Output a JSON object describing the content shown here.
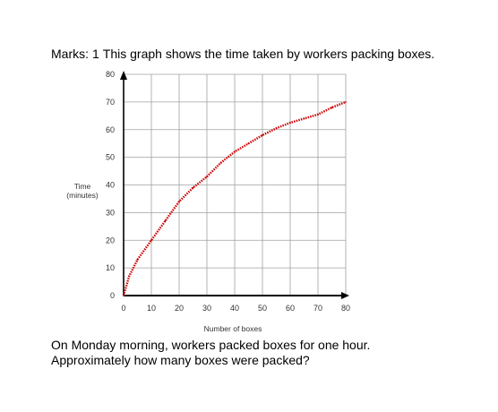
{
  "question": {
    "marks_label": "Marks:",
    "marks_value": "1",
    "text": "This graph shows the time taken by workers packing boxes.",
    "footer_line1": "On Monday morning, workers packed boxes for one hour.",
    "footer_line2": "Approximately how many boxes were packed?"
  },
  "chart_data": {
    "type": "line",
    "xlabel": "Number of boxes",
    "ylabel": "Time",
    "ylabel_unit": "(minutes)",
    "xlim": [
      0,
      80
    ],
    "ylim": [
      0,
      80
    ],
    "xticks": [
      0,
      10,
      20,
      30,
      40,
      50,
      60,
      70,
      80
    ],
    "yticks": [
      0,
      10,
      20,
      30,
      40,
      50,
      60,
      70,
      80
    ],
    "grid": true,
    "series": [
      {
        "color": "#cc0000",
        "style": "dotted",
        "x": [
          0,
          2,
          5,
          10,
          15,
          20,
          25,
          30,
          35,
          40,
          45,
          50,
          55,
          60,
          65,
          70,
          75,
          80
        ],
        "y": [
          0,
          7,
          13,
          20,
          27,
          34,
          39,
          43,
          48,
          52,
          55,
          58,
          60.5,
          62.5,
          64,
          65.5,
          68,
          70
        ]
      }
    ],
    "colors": {
      "grid": "#a0a0a0",
      "axis": "#000000"
    }
  }
}
